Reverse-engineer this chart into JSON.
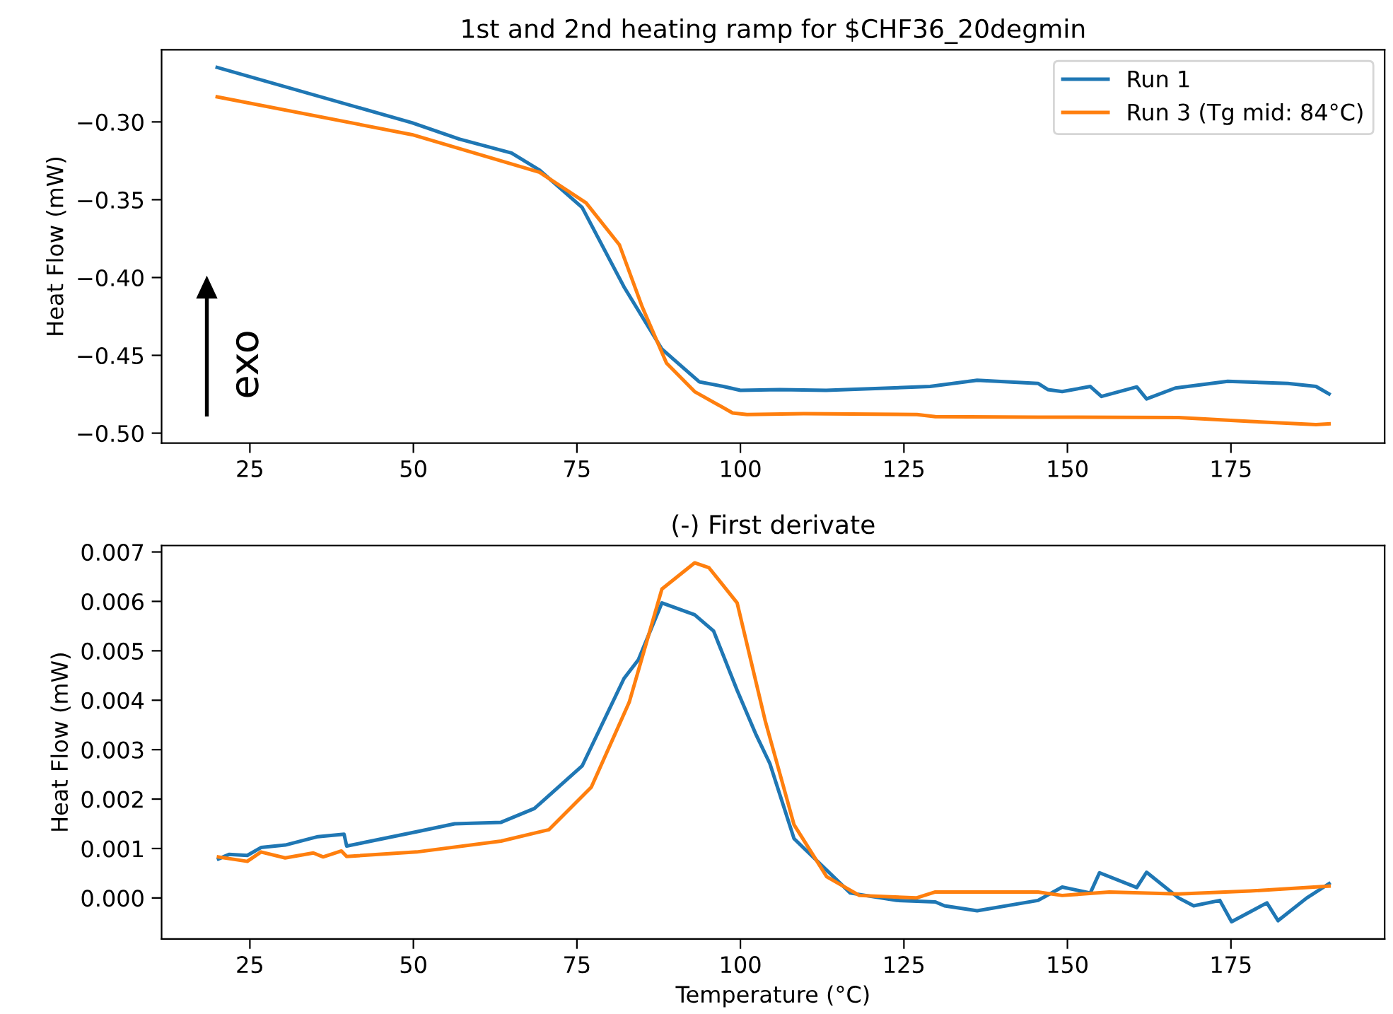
{
  "chart_data": [
    {
      "type": "line",
      "title": "1st and 2nd heating ramp for $CHF36_20degmin",
      "ylabel": "Heat Flow (mW)",
      "annotations": [
        "exo"
      ],
      "legend": "top right",
      "grid": false,
      "xlim": [
        11.5,
        198.5
      ],
      "xticks": [
        25,
        50,
        75,
        100,
        125,
        150,
        175
      ],
      "ylim": [
        -0.5064,
        -0.2536
      ],
      "yticks": [
        {
          "value": -0.5,
          "label": "−0.50"
        },
        {
          "value": -0.45,
          "label": "−0.45"
        },
        {
          "value": -0.4,
          "label": "−0.40"
        },
        {
          "value": -0.35,
          "label": "−0.35"
        },
        {
          "value": -0.3,
          "label": "−0.30"
        }
      ],
      "series": [
        {
          "name": "Run 1",
          "color": "#1f77b4",
          "x": [
            20,
            49.8,
            57,
            65,
            69.3,
            75.8,
            82.2,
            88,
            93.7,
            97.4,
            100,
            106,
            113.1,
            129,
            136.2,
            145.5,
            147,
            149.2,
            153.5,
            155.2,
            160.6,
            162.1,
            166.5,
            174.5,
            183.7,
            188,
            190
          ],
          "values": [
            -0.265,
            -0.3006,
            -0.311,
            -0.32,
            -0.331,
            -0.355,
            -0.406,
            -0.446,
            -0.467,
            -0.47,
            -0.4725,
            -0.472,
            -0.4725,
            -0.47,
            -0.466,
            -0.468,
            -0.472,
            -0.4733,
            -0.47,
            -0.4764,
            -0.4703,
            -0.478,
            -0.471,
            -0.4667,
            -0.468,
            -0.47,
            -0.4748
          ]
        },
        {
          "name": "Run 3 (Tg mid: 84°C)",
          "color": "#ff7f0e",
          "x": [
            20,
            49.8,
            69.3,
            76.4,
            81.5,
            85,
            88.7,
            93,
            98.8,
            101,
            109.7,
            127,
            129.8,
            145.5,
            167,
            178,
            188,
            190
          ],
          "values": [
            -0.2839,
            -0.3082,
            -0.3324,
            -0.352,
            -0.379,
            -0.419,
            -0.455,
            -0.4733,
            -0.487,
            -0.488,
            -0.4875,
            -0.488,
            -0.4894,
            -0.4897,
            -0.49,
            -0.4925,
            -0.4945,
            -0.494
          ]
        }
      ]
    },
    {
      "type": "line",
      "title": "(-) First derivate",
      "xlabel": "Temperature (°C)",
      "ylabel": "Heat Flow (mW)",
      "legend": false,
      "grid": false,
      "xlim": [
        11.5,
        198.5
      ],
      "xticks": [
        25,
        50,
        75,
        100,
        125,
        150,
        175
      ],
      "ylim": [
        -0.00083,
        0.00713
      ],
      "yticks": [
        {
          "value": 0,
          "label": "0.000"
        },
        {
          "value": 0.001,
          "label": "0.001"
        },
        {
          "value": 0.002,
          "label": "0.002"
        },
        {
          "value": 0.003,
          "label": "0.003"
        },
        {
          "value": 0.004,
          "label": "0.004"
        },
        {
          "value": 0.005,
          "label": "0.005"
        },
        {
          "value": 0.006,
          "label": "0.006"
        },
        {
          "value": 0.007,
          "label": "0.007"
        }
      ],
      "series": [
        {
          "color": "#1f77b4",
          "x": [
            20.2,
            21.8,
            24.6,
            26.7,
            30.4,
            35.4,
            39.4,
            39.8,
            50.5,
            56.3,
            63.4,
            68.5,
            75.8,
            82.2,
            84.4,
            88,
            93,
            95.9,
            99.5,
            102.4,
            104.5,
            108.2,
            116.8,
            123.9,
            129.8,
            131.2,
            136.2,
            145.5,
            149.2,
            153.5,
            154.9,
            160.6,
            162.1,
            167,
            169.3,
            173.3,
            175.1,
            180.5,
            182.2,
            186.6,
            190
          ],
          "values": [
            0.00079,
            0.00088,
            0.00086,
            0.00102,
            0.00107,
            0.00124,
            0.00129,
            0.00105,
            0.00134,
            0.0015,
            0.00153,
            0.00181,
            0.00267,
            0.00444,
            0.00482,
            0.00597,
            0.00573,
            0.0054,
            0.0042,
            0.0033,
            0.00272,
            0.0012,
            0.0001,
            -5e-05,
            -8e-05,
            -0.00016,
            -0.00026,
            -5e-05,
            0.00022,
            0.0001,
            0.00051,
            0.00021,
            0.00052,
            0.0,
            -0.00016,
            -5e-05,
            -0.00048,
            -0.0001,
            -0.00046,
            0.0,
            0.00029
          ]
        },
        {
          "color": "#ff7f0e",
          "x": [
            20.2,
            24.6,
            26.7,
            30.4,
            34.7,
            36.2,
            39.0,
            39.8,
            50.5,
            63.4,
            70.7,
            77.2,
            83,
            88,
            93,
            95.2,
            99.5,
            103.8,
            108.2,
            113.2,
            118.2,
            126.9,
            129.8,
            145.5,
            149.2,
            156.4,
            167,
            178,
            190
          ],
          "values": [
            0.00083,
            0.00074,
            0.00093,
            0.00081,
            0.00091,
            0.00083,
            0.00095,
            0.00084,
            0.00093,
            0.00115,
            0.00138,
            0.00224,
            0.00396,
            0.00625,
            0.00678,
            0.00668,
            0.00597,
            0.00358,
            0.00148,
            0.00043,
            5e-05,
            0.0,
            0.00012,
            0.00012,
            5e-05,
            0.00012,
            8e-05,
            0.00014,
            0.00024
          ]
        }
      ]
    }
  ]
}
